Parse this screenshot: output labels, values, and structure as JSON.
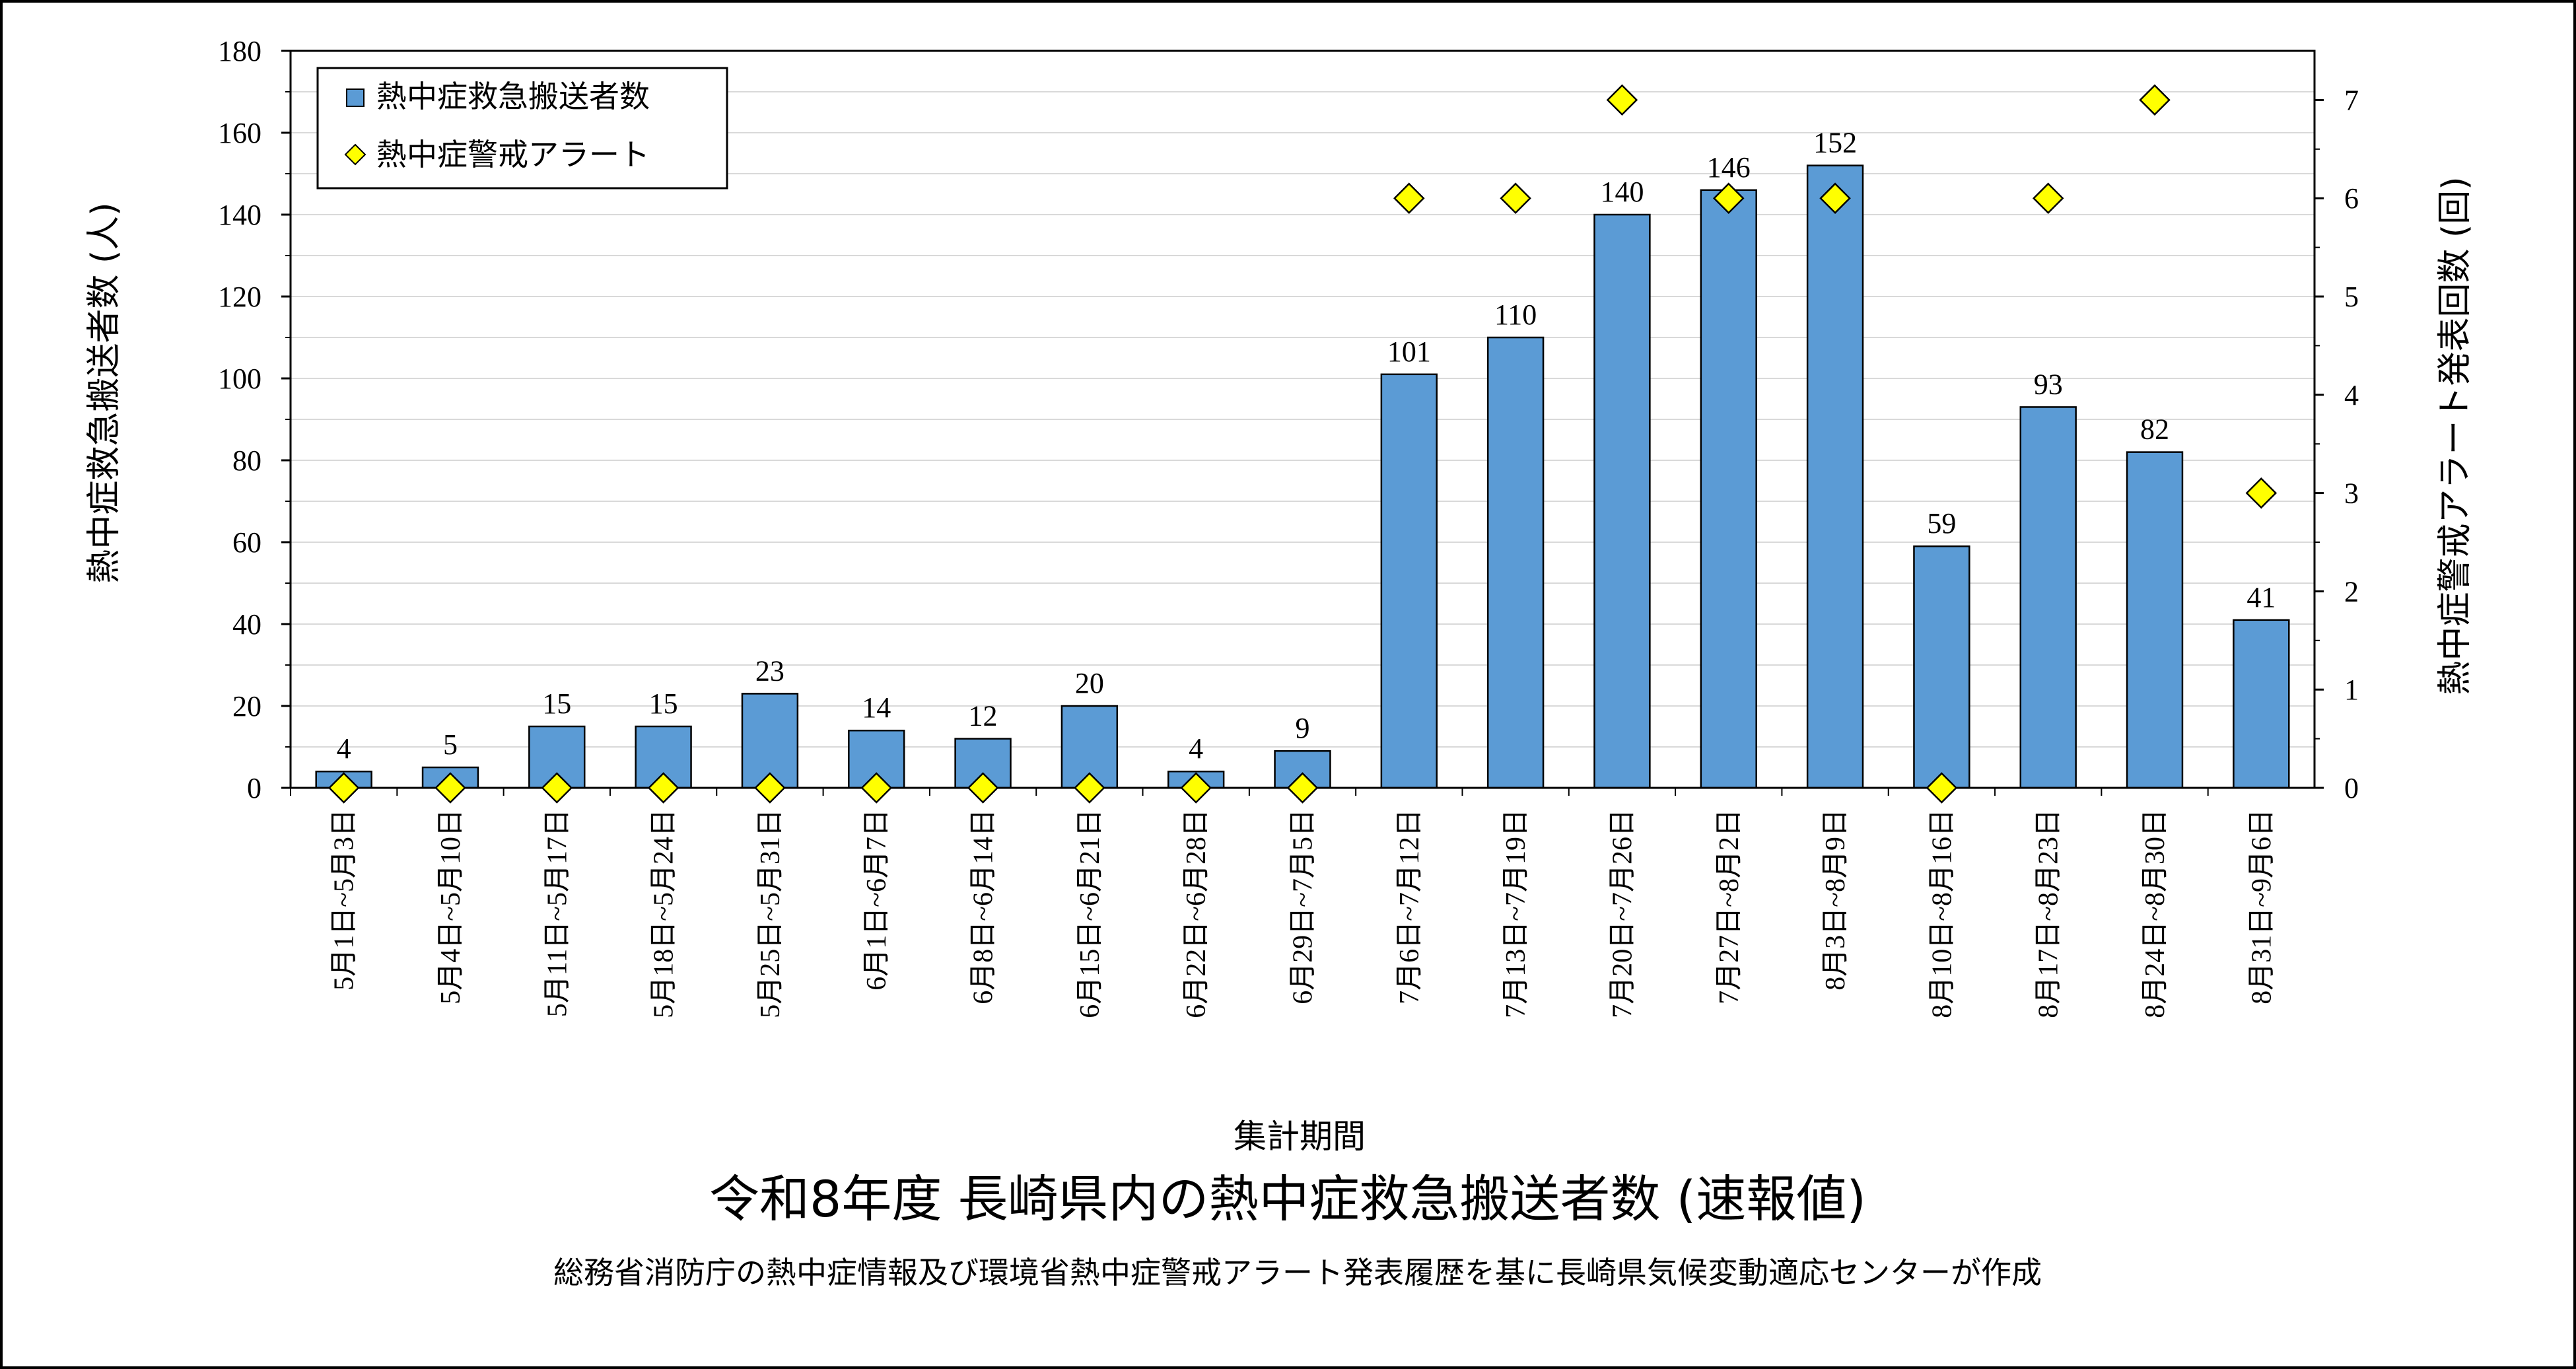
{
  "chart_data": {
    "type": "bar",
    "title": "令和8年度 長崎県内の熱中症救急搬送者数 (速報値)",
    "subtitle": "総務省消防庁の熱中症情報及び環境省熱中症警戒アラート発表履歴を基に長崎県気候変動適応センターが作成",
    "xlabel": "集計期間",
    "ylabel": "熱中症救急搬送者数 (人)",
    "y2label": "熱中症警戒アラート発表回数 (回)",
    "ylim": [
      0,
      180
    ],
    "y2lim": [
      0,
      7.5
    ],
    "yticks": [
      "0",
      "20",
      "40",
      "60",
      "80",
      "100",
      "120",
      "140",
      "160",
      "180"
    ],
    "y2ticks": [
      "0",
      "1",
      "2",
      "3",
      "4",
      "5",
      "6",
      "7"
    ],
    "grid": true,
    "legend_position": "top-left",
    "categories": [
      "5月1日~5月3日",
      "5月4日~5月10日",
      "5月11日~5月17日",
      "5月18日~5月24日",
      "5月25日~5月31日",
      "6月1日~6月7日",
      "6月8日~6月14日",
      "6月15日~6月21日",
      "6月22日~6月28日",
      "6月29日~7月5日",
      "7月6日~7月12日",
      "7月13日~7月19日",
      "7月20日~7月26日",
      "7月27日~8月2日",
      "8月3日~8月9日",
      "8月10日~8月16日",
      "8月17日~8月23日",
      "8月24日~8月30日",
      "8月31日~9月6日"
    ],
    "series": [
      {
        "name": "熱中症救急搬送者数",
        "type": "bar",
        "axis": "left",
        "color": "#5B9BD5",
        "values": [
          4,
          5,
          15,
          15,
          23,
          14,
          12,
          20,
          4,
          9,
          101,
          110,
          140,
          146,
          152,
          59,
          93,
          82,
          41
        ]
      },
      {
        "name": "熱中症警戒アラート",
        "type": "scatter",
        "axis": "right",
        "color": "#FFFF00",
        "values": [
          0,
          0,
          0,
          0,
          0,
          0,
          0,
          0,
          0,
          0,
          6,
          6,
          7,
          6,
          6,
          0,
          6,
          7,
          3
        ]
      }
    ]
  }
}
